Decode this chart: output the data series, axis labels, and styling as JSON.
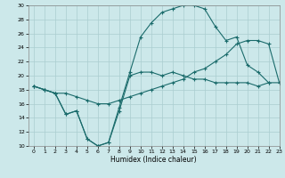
{
  "xlabel": "Humidex (Indice chaleur)",
  "bg_color": "#cce8ea",
  "grid_color": "#aacdd0",
  "line_color": "#1a6b6b",
  "xlim": [
    -0.5,
    23
  ],
  "ylim": [
    10,
    30
  ],
  "xticks": [
    0,
    1,
    2,
    3,
    4,
    5,
    6,
    7,
    8,
    9,
    10,
    11,
    12,
    13,
    14,
    15,
    16,
    17,
    18,
    19,
    20,
    21,
    22,
    23
  ],
  "yticks": [
    10,
    12,
    14,
    16,
    18,
    20,
    22,
    24,
    26,
    28,
    30
  ],
  "line1_x": [
    0,
    1,
    2,
    3,
    4,
    5,
    6,
    7,
    8,
    9,
    10,
    11,
    12,
    13,
    14,
    15,
    16,
    17,
    18,
    19,
    20,
    21,
    22,
    23
  ],
  "line1_y": [
    18.5,
    18.0,
    17.5,
    14.5,
    15.0,
    11.0,
    10.0,
    10.5,
    15.0,
    20.0,
    20.5,
    20.5,
    20.0,
    20.5,
    20.0,
    19.5,
    19.5,
    19.0,
    19.0,
    19.0,
    19.0,
    18.5,
    19.0,
    19.0
  ],
  "line2_x": [
    0,
    1,
    2,
    3,
    4,
    5,
    6,
    7,
    8,
    9,
    10,
    11,
    12,
    13,
    14,
    15,
    16,
    17,
    18,
    19,
    20,
    21,
    22
  ],
  "line2_y": [
    18.5,
    18.0,
    17.5,
    14.5,
    15.0,
    11.0,
    10.0,
    10.5,
    15.5,
    20.5,
    25.5,
    27.5,
    29.0,
    29.5,
    30.0,
    30.0,
    29.5,
    27.0,
    25.0,
    25.5,
    21.5,
    20.5,
    19.0
  ],
  "line3_x": [
    0,
    1,
    2,
    3,
    4,
    5,
    6,
    7,
    8,
    9,
    10,
    11,
    12,
    13,
    14,
    15,
    16,
    17,
    18,
    19,
    20,
    21,
    22,
    23
  ],
  "line3_y": [
    18.5,
    18.0,
    17.5,
    17.5,
    17.0,
    16.5,
    16.0,
    16.0,
    16.5,
    17.0,
    17.5,
    18.0,
    18.5,
    19.0,
    19.5,
    20.5,
    21.0,
    22.0,
    23.0,
    24.5,
    25.0,
    25.0,
    24.5,
    19.0
  ]
}
